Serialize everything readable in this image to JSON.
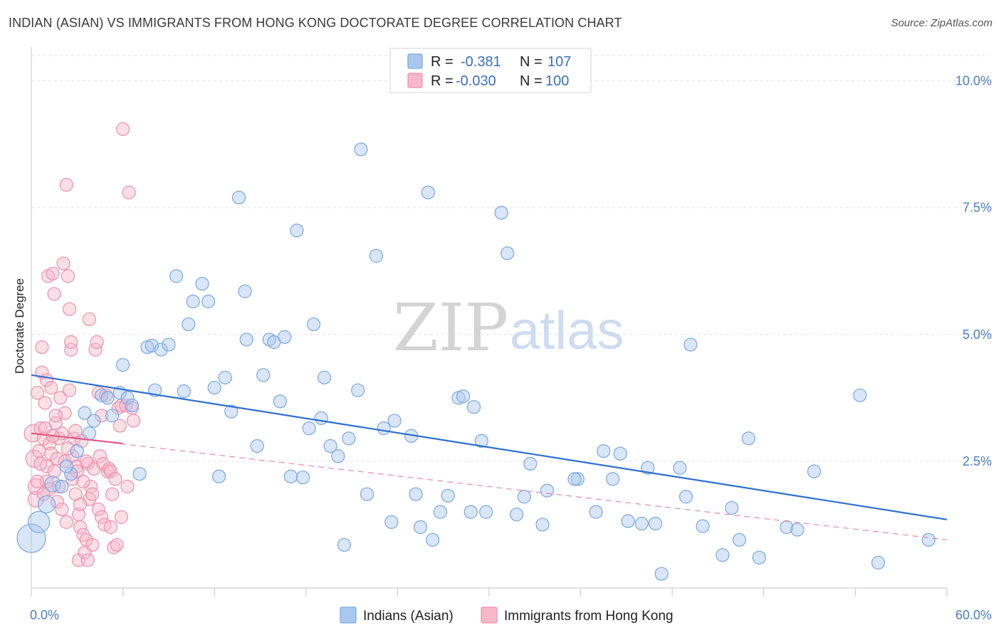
{
  "title": "INDIAN (ASIAN) VS IMMIGRANTS FROM HONG KONG DOCTORATE DEGREE CORRELATION CHART",
  "source": "Source: ZipAtlas.com",
  "watermark": {
    "zip": "ZIP",
    "atlas": "atlas"
  },
  "legend": {
    "rows": [
      {
        "r_label": "R = ",
        "r_value": "-0.381",
        "n_label": "N = ",
        "n_value": "107"
      },
      {
        "r_label": "R = ",
        "r_value": "-0.030",
        "n_label": "N = ",
        "n_value": "100"
      }
    ]
  },
  "chart_data": {
    "type": "scatter",
    "xlabel": "",
    "ylabel": "Doctorate Degree",
    "xlim": [
      0,
      60
    ],
    "ylim": [
      0,
      10.5
    ],
    "x_tick_labels": [
      {
        "value": 0,
        "label": "0.0%"
      },
      {
        "value": 60,
        "label": "60.0%"
      }
    ],
    "y_tick_labels": [
      {
        "value": 2.5,
        "label": "2.5%"
      },
      {
        "value": 5.0,
        "label": "5.0%"
      },
      {
        "value": 7.5,
        "label": "7.5%"
      },
      {
        "value": 10.0,
        "label": "10.0%"
      }
    ],
    "grid": true,
    "series": [
      {
        "name": "Indians (Asian)",
        "color": "#a9c8ef",
        "stroke": "#7aa7e0",
        "trend": {
          "x": [
            0,
            60
          ],
          "y": [
            4.2,
            1.35
          ],
          "color": "#2f6fd0",
          "style": "solid"
        },
        "points": [
          [
            0,
            0.98,
            20
          ],
          [
            0.5,
            1.3,
            15
          ],
          [
            1.0,
            1.65,
            12
          ],
          [
            1.4,
            2.05,
            11
          ],
          [
            2.0,
            2.0,
            9
          ],
          [
            2.6,
            2.25,
            9
          ],
          [
            2.3,
            2.4,
            9
          ],
          [
            3.0,
            2.7,
            9
          ],
          [
            3.5,
            3.45,
            9
          ],
          [
            3.8,
            3.05,
            9
          ],
          [
            4.1,
            3.3,
            9
          ],
          [
            4.6,
            3.8,
            9
          ],
          [
            5.0,
            3.75,
            9
          ],
          [
            5.3,
            3.4,
            9
          ],
          [
            5.8,
            3.85,
            9
          ],
          [
            6.0,
            4.4,
            9
          ],
          [
            6.3,
            3.75,
            9
          ],
          [
            6.6,
            3.6,
            9
          ],
          [
            7.1,
            2.25,
            9
          ],
          [
            7.6,
            4.75,
            9
          ],
          [
            7.9,
            4.78,
            9
          ],
          [
            8.1,
            3.9,
            9
          ],
          [
            8.5,
            4.7,
            9
          ],
          [
            9.0,
            4.8,
            9
          ],
          [
            9.5,
            6.15,
            9
          ],
          [
            10.0,
            3.88,
            9
          ],
          [
            10.3,
            5.2,
            9
          ],
          [
            10.6,
            5.65,
            9
          ],
          [
            11.2,
            6.0,
            9
          ],
          [
            11.6,
            5.65,
            9
          ],
          [
            12.0,
            3.95,
            9
          ],
          [
            12.3,
            2.2,
            9
          ],
          [
            12.7,
            4.15,
            9
          ],
          [
            13.1,
            3.48,
            9
          ],
          [
            13.6,
            7.7,
            9
          ],
          [
            14.0,
            5.85,
            9
          ],
          [
            14.1,
            4.9,
            9
          ],
          [
            14.8,
            2.8,
            9
          ],
          [
            15.2,
            4.2,
            9
          ],
          [
            15.6,
            4.9,
            9
          ],
          [
            15.9,
            4.85,
            9
          ],
          [
            16.3,
            3.68,
            9
          ],
          [
            16.6,
            4.95,
            9
          ],
          [
            17.0,
            2.2,
            9
          ],
          [
            17.4,
            7.05,
            9
          ],
          [
            17.8,
            2.18,
            9
          ],
          [
            18.2,
            3.15,
            9
          ],
          [
            18.5,
            5.2,
            9
          ],
          [
            19.0,
            3.35,
            9
          ],
          [
            19.2,
            4.15,
            9
          ],
          [
            19.6,
            2.8,
            9
          ],
          [
            20.1,
            2.6,
            9
          ],
          [
            20.5,
            0.85,
            9
          ],
          [
            20.8,
            2.95,
            9
          ],
          [
            21.4,
            3.9,
            9
          ],
          [
            21.6,
            8.65,
            9
          ],
          [
            22.0,
            1.85,
            9
          ],
          [
            22.6,
            6.55,
            9
          ],
          [
            23.1,
            3.15,
            9
          ],
          [
            23.6,
            1.3,
            9
          ],
          [
            23.8,
            3.3,
            9
          ],
          [
            24.9,
            3.0,
            9
          ],
          [
            25.2,
            1.85,
            9
          ],
          [
            25.5,
            1.2,
            9
          ],
          [
            26.0,
            7.8,
            9
          ],
          [
            26.3,
            0.95,
            9
          ],
          [
            26.8,
            1.5,
            9
          ],
          [
            27.3,
            1.82,
            9
          ],
          [
            28.0,
            3.75,
            9
          ],
          [
            28.3,
            3.78,
            9
          ],
          [
            28.8,
            1.5,
            9
          ],
          [
            29.0,
            3.57,
            9
          ],
          [
            29.5,
            2.9,
            9
          ],
          [
            29.8,
            1.5,
            9
          ],
          [
            30.8,
            7.4,
            9
          ],
          [
            31.2,
            6.6,
            9
          ],
          [
            31.8,
            1.45,
            9
          ],
          [
            32.3,
            1.8,
            9
          ],
          [
            32.7,
            2.45,
            9
          ],
          [
            33.5,
            1.25,
            9
          ],
          [
            33.8,
            1.92,
            9
          ],
          [
            35.8,
            2.15,
            9
          ],
          [
            35.6,
            2.15,
            9
          ],
          [
            37.0,
            1.5,
            9
          ],
          [
            37.5,
            2.7,
            9
          ],
          [
            38.1,
            2.15,
            9
          ],
          [
            38.6,
            2.65,
            9
          ],
          [
            39.1,
            1.32,
            9
          ],
          [
            40.0,
            1.27,
            9
          ],
          [
            40.4,
            2.37,
            9
          ],
          [
            40.9,
            1.27,
            9
          ],
          [
            41.3,
            0.28,
            9
          ],
          [
            42.5,
            2.37,
            9
          ],
          [
            42.9,
            1.8,
            9
          ],
          [
            43.2,
            4.8,
            9
          ],
          [
            44.0,
            1.22,
            9
          ],
          [
            45.3,
            0.65,
            9
          ],
          [
            45.9,
            1.58,
            9
          ],
          [
            46.4,
            0.95,
            9
          ],
          [
            47.0,
            2.95,
            9
          ],
          [
            47.7,
            0.6,
            9
          ],
          [
            49.5,
            1.2,
            9
          ],
          [
            50.2,
            1.15,
            9
          ],
          [
            51.3,
            2.3,
            9
          ],
          [
            54.3,
            3.8,
            9
          ],
          [
            55.5,
            0.5,
            9
          ],
          [
            58.8,
            0.95,
            9
          ]
        ]
      },
      {
        "name": "Immigrants from Hong Kong",
        "color": "#f6b8ca",
        "stroke": "#ee8fac",
        "trend": {
          "x": [
            0,
            6
          ],
          "y": [
            3.05,
            2.85
          ],
          "color": "#e05a88",
          "style": "solid"
        },
        "trend_extended": {
          "x": [
            0,
            60
          ],
          "y": [
            3.05,
            0.95
          ],
          "color": "#e88aa8",
          "style": "dashed"
        },
        "points": [
          [
            0.1,
            3.05,
            12
          ],
          [
            0.2,
            2.55,
            12
          ],
          [
            0.3,
            2.0,
            11
          ],
          [
            0.3,
            1.75,
            11
          ],
          [
            0.4,
            3.85,
            9
          ],
          [
            0.5,
            2.7,
            9
          ],
          [
            0.6,
            3.15,
            9
          ],
          [
            0.7,
            4.75,
            9
          ],
          [
            0.7,
            4.25,
            9
          ],
          [
            0.8,
            2.95,
            9
          ],
          [
            0.9,
            3.65,
            9
          ],
          [
            1.0,
            4.1,
            9
          ],
          [
            1.0,
            2.4,
            9
          ],
          [
            1.1,
            6.15,
            9
          ],
          [
            1.2,
            2.85,
            9
          ],
          [
            1.3,
            3.95,
            9
          ],
          [
            1.3,
            2.65,
            9
          ],
          [
            1.4,
            6.2,
            9
          ],
          [
            1.5,
            5.8,
            9
          ],
          [
            1.6,
            3.25,
            9
          ],
          [
            1.7,
            2.55,
            9
          ],
          [
            1.8,
            2.95,
            9
          ],
          [
            1.9,
            3.75,
            9
          ],
          [
            2.0,
            3.05,
            9
          ],
          [
            2.1,
            6.4,
            9
          ],
          [
            2.2,
            2.5,
            9
          ],
          [
            2.2,
            3.45,
            9
          ],
          [
            2.3,
            7.95,
            9
          ],
          [
            2.4,
            6.15,
            9
          ],
          [
            2.5,
            5.5,
            9
          ],
          [
            2.5,
            3.9,
            9
          ],
          [
            2.6,
            4.7,
            9
          ],
          [
            2.6,
            4.85,
            9
          ],
          [
            2.7,
            2.6,
            9
          ],
          [
            2.8,
            2.95,
            9
          ],
          [
            2.9,
            1.85,
            9
          ],
          [
            3.0,
            2.4,
            9
          ],
          [
            3.1,
            1.45,
            9
          ],
          [
            3.1,
            0.55,
            9
          ],
          [
            3.2,
            1.2,
            9
          ],
          [
            3.3,
            2.9,
            9
          ],
          [
            3.4,
            1.05,
            9
          ],
          [
            3.5,
            0.7,
            9
          ],
          [
            3.6,
            0.95,
            9
          ],
          [
            3.7,
            2.45,
            9
          ],
          [
            3.8,
            1.75,
            9
          ],
          [
            3.8,
            5.3,
            9
          ],
          [
            3.9,
            2.0,
            9
          ],
          [
            4.0,
            1.85,
            9
          ],
          [
            4.0,
            0.85,
            9
          ],
          [
            4.1,
            2.35,
            9
          ],
          [
            4.2,
            4.7,
            9
          ],
          [
            4.3,
            4.85,
            9
          ],
          [
            4.4,
            3.85,
            9
          ],
          [
            4.4,
            1.55,
            9
          ],
          [
            4.5,
            2.6,
            9
          ],
          [
            4.6,
            1.4,
            9
          ],
          [
            4.7,
            2.45,
            9
          ],
          [
            4.8,
            1.25,
            9
          ],
          [
            4.9,
            3.8,
            9
          ],
          [
            5.0,
            2.3,
            9
          ],
          [
            5.1,
            2.35,
            9
          ],
          [
            5.2,
            2.3,
            9
          ],
          [
            5.3,
            1.85,
            9
          ],
          [
            5.4,
            0.8,
            9
          ],
          [
            5.5,
            2.15,
            9
          ],
          [
            5.6,
            0.85,
            9
          ],
          [
            5.7,
            3.55,
            9
          ],
          [
            5.8,
            3.2,
            9
          ],
          [
            5.9,
            3.6,
            9
          ],
          [
            6.0,
            9.05,
            9
          ],
          [
            6.2,
            3.6,
            9
          ],
          [
            6.4,
            7.8,
            9
          ],
          [
            6.6,
            3.55,
            9
          ],
          [
            1.0,
            2.1,
            9
          ],
          [
            1.5,
            2.3,
            9
          ],
          [
            1.7,
            1.7,
            9
          ],
          [
            2.0,
            1.55,
            9
          ],
          [
            2.3,
            1.3,
            9
          ],
          [
            2.7,
            2.15,
            9
          ],
          [
            3.0,
            2.3,
            9
          ],
          [
            3.2,
            1.65,
            9
          ],
          [
            3.4,
            2.1,
            9
          ],
          [
            3.6,
            2.5,
            9
          ],
          [
            3.7,
            0.55,
            9
          ],
          [
            1.2,
            1.95,
            9
          ],
          [
            1.8,
            2.0,
            9
          ],
          [
            2.4,
            2.75,
            9
          ],
          [
            0.6,
            2.45,
            9
          ],
          [
            0.9,
            3.15,
            9
          ],
          [
            1.4,
            3.0,
            9
          ],
          [
            1.6,
            3.4,
            9
          ],
          [
            2.9,
            3.1,
            9
          ],
          [
            4.6,
            3.4,
            9
          ],
          [
            5.2,
            1.2,
            9
          ],
          [
            5.9,
            1.4,
            9
          ],
          [
            6.3,
            2.0,
            9
          ],
          [
            6.7,
            3.3,
            9
          ],
          [
            0.4,
            2.1,
            9
          ],
          [
            0.8,
            1.85,
            9
          ]
        ]
      }
    ]
  },
  "bottom_legend": [
    {
      "label": "Indians (Asian)",
      "color": "#a9c8ef",
      "stroke": "#7aa7e0"
    },
    {
      "label": "Immigrants from Hong Kong",
      "color": "#f6b8ca",
      "stroke": "#ee8fac"
    }
  ]
}
